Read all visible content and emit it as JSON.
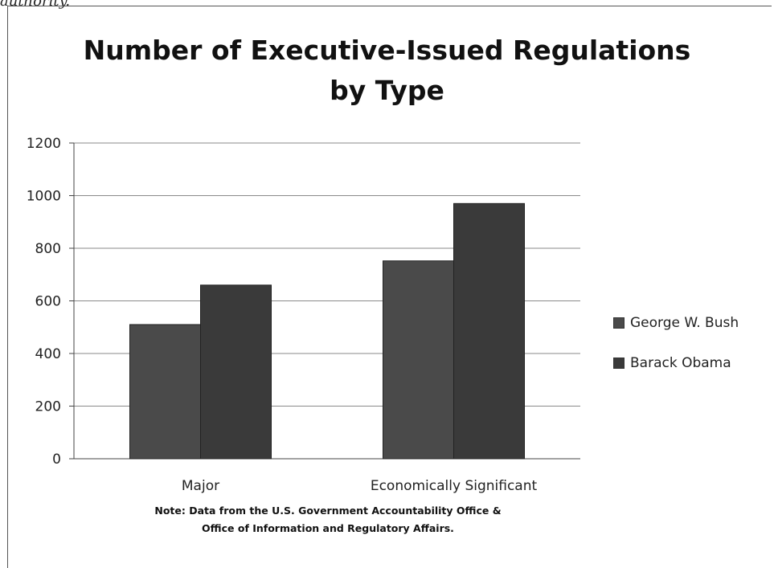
{
  "page": {
    "top_text": "authority."
  },
  "chart_data": {
    "type": "bar",
    "title_lines": [
      "Number of Executive-Issued Regulations",
      "by Type"
    ],
    "categories": [
      "Major",
      "Economically Significant"
    ],
    "series": [
      {
        "name": "George W. Bush",
        "values": [
          510,
          752
        ],
        "color": "#4a4a4a"
      },
      {
        "name": "Barack Obama",
        "values": [
          660,
          970
        ],
        "color": "#3a3a3a"
      }
    ],
    "ylim": [
      0,
      1200
    ],
    "yticks": [
      "0",
      "200",
      "400",
      "600",
      "800",
      "1000",
      "1200"
    ],
    "grid": true,
    "legend_position": "right",
    "note_lines": [
      "Note: Data from the U.S. Government Accountability Office &",
      "Office of Information and Regulatory Affairs."
    ]
  }
}
